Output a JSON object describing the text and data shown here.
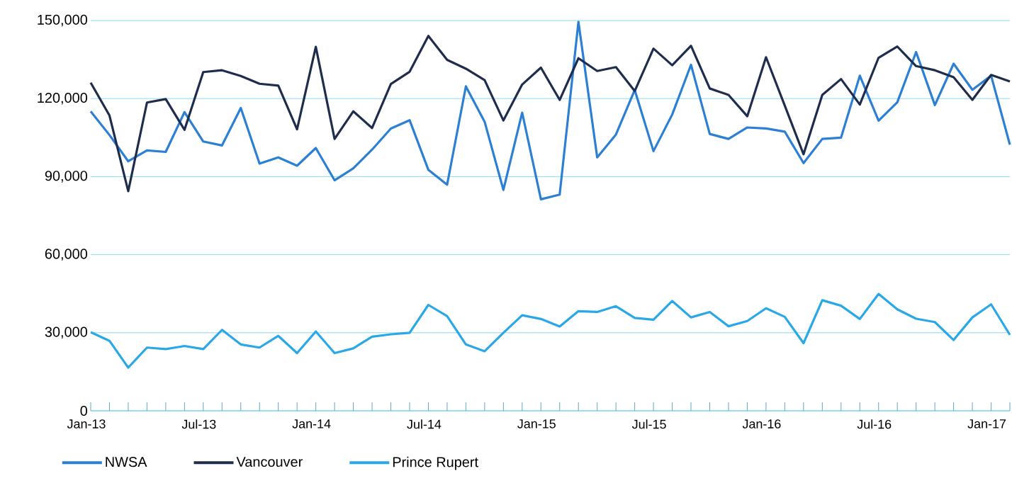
{
  "chart_data": {
    "type": "line",
    "x": [
      "2013-01",
      "2013-02",
      "2013-03",
      "2013-04",
      "2013-05",
      "2013-06",
      "2013-07",
      "2013-08",
      "2013-09",
      "2013-10",
      "2013-11",
      "2013-12",
      "2014-01",
      "2014-02",
      "2014-03",
      "2014-04",
      "2014-05",
      "2014-06",
      "2014-07",
      "2014-08",
      "2014-09",
      "2014-10",
      "2014-11",
      "2014-12",
      "2015-01",
      "2015-02",
      "2015-03",
      "2015-04",
      "2015-05",
      "2015-06",
      "2015-07",
      "2015-08",
      "2015-09",
      "2015-10",
      "2015-11",
      "2015-12",
      "2016-01",
      "2016-02",
      "2016-03",
      "2016-04",
      "2016-05",
      "2016-06",
      "2016-07",
      "2016-08",
      "2016-09",
      "2016-10",
      "2016-11",
      "2016-12",
      "2017-01",
      "2017-02"
    ],
    "series": [
      {
        "name": "NWSA",
        "color": "#2b7fd4",
        "values": [
          115100,
          106000,
          95900,
          100100,
          99500,
          114800,
          103500,
          102000,
          116400,
          95000,
          97400,
          94200,
          101000,
          88600,
          93200,
          100400,
          108500,
          111700,
          92600,
          86900,
          124700,
          111100,
          84900,
          114600,
          81300,
          83100,
          149500,
          97400,
          106200,
          123300,
          99800,
          113900,
          133000,
          106400,
          104500,
          108900,
          108500,
          107300,
          95200,
          104500,
          105000,
          128800,
          111500,
          118600,
          137900,
          117500,
          133400,
          123400,
          128800,
          102300
        ]
      },
      {
        "name": "Vancouver",
        "color": "#1f2d4d",
        "values": [
          126100,
          113500,
          84400,
          118500,
          119800,
          108000,
          130200,
          130900,
          128700,
          125700,
          125000,
          108200,
          139900,
          104500,
          115100,
          108700,
          125600,
          130300,
          144100,
          134900,
          131500,
          127100,
          111600,
          125400,
          131900,
          119500,
          135500,
          130600,
          132100,
          122900,
          139200,
          132800,
          140300,
          123900,
          121400,
          113200,
          135900,
          117300,
          98600,
          121400,
          127500,
          117700,
          135700,
          140000,
          132500,
          130900,
          128200,
          119500,
          129100,
          126600
        ]
      },
      {
        "name": "Prince Rupert",
        "color": "#29a8e8",
        "values": [
          30200,
          26900,
          16600,
          24300,
          23700,
          24900,
          23700,
          31100,
          25500,
          24300,
          28800,
          22200,
          30500,
          22200,
          24000,
          28500,
          29400,
          30000,
          40700,
          36400,
          25500,
          22900,
          30000,
          36700,
          35300,
          32400,
          38300,
          38000,
          40200,
          35700,
          35000,
          42200,
          35900,
          38000,
          32500,
          34500,
          39400,
          36100,
          26000,
          42500,
          40400,
          35300,
          44900,
          39000,
          35400,
          34100,
          27200,
          35900,
          40900,
          29200
        ]
      }
    ],
    "xlim": [
      "2013-01",
      "2017-02"
    ],
    "xticks": [
      {
        "value": "2013-01",
        "label": "Jan-13"
      },
      {
        "value": "2013-02",
        "label": null
      },
      {
        "value": "2013-03",
        "label": null
      },
      {
        "value": "2013-04",
        "label": null
      },
      {
        "value": "2013-05",
        "label": null
      },
      {
        "value": "2013-06",
        "label": null
      },
      {
        "value": "2013-07",
        "label": "Jul-13"
      },
      {
        "value": "2013-08",
        "label": null
      },
      {
        "value": "2013-09",
        "label": null
      },
      {
        "value": "2013-10",
        "label": null
      },
      {
        "value": "2013-11",
        "label": null
      },
      {
        "value": "2013-12",
        "label": null
      },
      {
        "value": "2014-01",
        "label": "Jan-14"
      },
      {
        "value": "2014-02",
        "label": null
      },
      {
        "value": "2014-03",
        "label": null
      },
      {
        "value": "2014-04",
        "label": null
      },
      {
        "value": "2014-05",
        "label": null
      },
      {
        "value": "2014-06",
        "label": null
      },
      {
        "value": "2014-07",
        "label": "Jul-14"
      },
      {
        "value": "2014-08",
        "label": null
      },
      {
        "value": "2014-09",
        "label": null
      },
      {
        "value": "2014-10",
        "label": null
      },
      {
        "value": "2014-11",
        "label": null
      },
      {
        "value": "2014-12",
        "label": null
      },
      {
        "value": "2015-01",
        "label": "Jan-15"
      },
      {
        "value": "2015-02",
        "label": null
      },
      {
        "value": "2015-03",
        "label": null
      },
      {
        "value": "2015-04",
        "label": null
      },
      {
        "value": "2015-05",
        "label": null
      },
      {
        "value": "2015-06",
        "label": null
      },
      {
        "value": "2015-07",
        "label": "Jul-15"
      },
      {
        "value": "2015-08",
        "label": null
      },
      {
        "value": "2015-09",
        "label": null
      },
      {
        "value": "2015-10",
        "label": null
      },
      {
        "value": "2015-11",
        "label": null
      },
      {
        "value": "2015-12",
        "label": null
      },
      {
        "value": "2016-01",
        "label": "Jan-16"
      },
      {
        "value": "2016-02",
        "label": null
      },
      {
        "value": "2016-03",
        "label": null
      },
      {
        "value": "2016-04",
        "label": null
      },
      {
        "value": "2016-05",
        "label": null
      },
      {
        "value": "2016-06",
        "label": null
      },
      {
        "value": "2016-07",
        "label": "Jul-16"
      },
      {
        "value": "2016-08",
        "label": null
      },
      {
        "value": "2016-09",
        "label": null
      },
      {
        "value": "2016-10",
        "label": null
      },
      {
        "value": "2016-11",
        "label": null
      },
      {
        "value": "2016-12",
        "label": null
      },
      {
        "value": "2017-01",
        "label": "Jan-17"
      },
      {
        "value": "2017-02",
        "label": null
      }
    ],
    "ylim": [
      0,
      150000
    ],
    "yticks": [
      0,
      {
        "value": 30000,
        "label": "30,000"
      },
      {
        "value": 60000,
        "label": "60,000"
      },
      {
        "value": 90000,
        "label": "90,000"
      },
      {
        "value": 120000,
        "label": "120,000"
      },
      {
        "value": 150000,
        "label": "150,000"
      }
    ],
    "grid": "y",
    "legend": "bottom",
    "marker": "none",
    "line_style": "solid"
  }
}
